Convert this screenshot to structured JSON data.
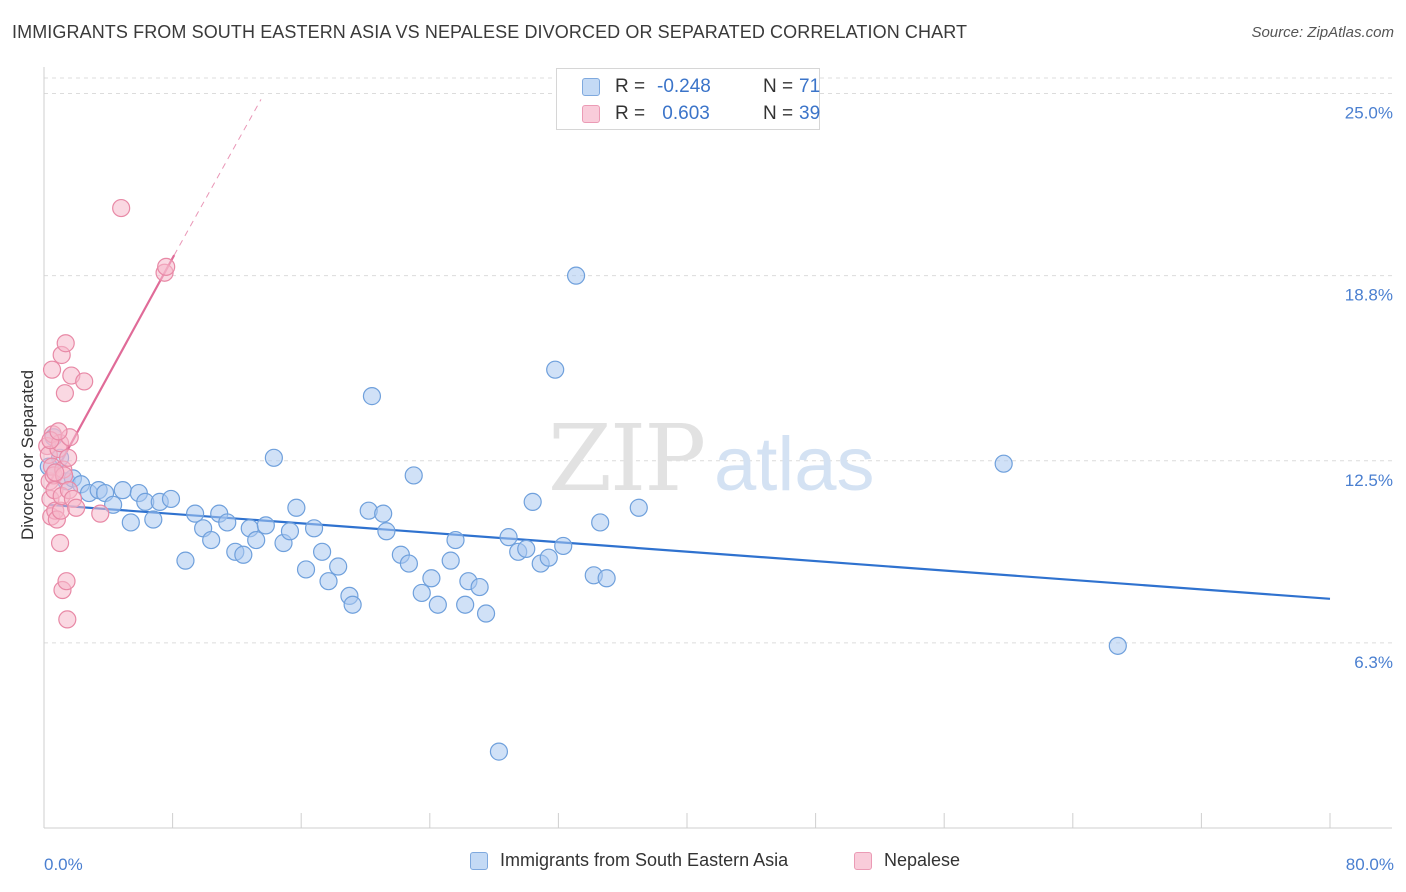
{
  "title": "IMMIGRANTS FROM SOUTH EASTERN ASIA VS NEPALESE DIVORCED OR SEPARATED CORRELATION CHART",
  "source": "Source: ZipAtlas.com",
  "watermark": {
    "zip": "ZIP",
    "atlas": "atlas"
  },
  "colors": {
    "blue_fill": "#a9c8f0",
    "blue_stroke": "#6fa0dc",
    "blue_line": "#2f72cf",
    "pink_fill": "#f5b8cb",
    "pink_stroke": "#e889a6",
    "pink_line": "#e06b98",
    "axis_label": "#4a7fd0",
    "grid": "#dcdcdc"
  },
  "stats": [
    {
      "r_label": "R =",
      "r_value": "-0.248",
      "n_label": "N =",
      "n_value": "71",
      "color": "blue"
    },
    {
      "r_label": "R =",
      "r_value": " 0.603",
      "n_label": "N =",
      "n_value": "39",
      "color": "pink"
    }
  ],
  "legend": [
    {
      "label": "Immigrants from South Eastern Asia",
      "color": "blue"
    },
    {
      "label": "Nepalese",
      "color": "pink"
    }
  ],
  "chart_data": {
    "type": "scatter",
    "ylabel": "Divorced or Separated",
    "xlim": [
      0,
      80
    ],
    "ylim": [
      0,
      25.8
    ],
    "x_tick_labels": [
      {
        "value": 0,
        "label": "0.0%"
      },
      {
        "value": 80,
        "label": "80.0%"
      }
    ],
    "y_ticks": [
      {
        "value": 6.3,
        "label": "6.3%"
      },
      {
        "value": 12.5,
        "label": "12.5%"
      },
      {
        "value": 18.8,
        "label": "18.8%"
      },
      {
        "value": 25.0,
        "label": "25.0%"
      }
    ],
    "x_minor_ticks": [
      8,
      16,
      24,
      32,
      40,
      48,
      56,
      64,
      72,
      80
    ],
    "series": [
      {
        "name": "Immigrants from South Eastern Asia",
        "color": "blue",
        "points": [
          [
            0.6,
            13.3
          ],
          [
            1.0,
            12.6
          ],
          [
            1.4,
            11.8
          ],
          [
            1.8,
            11.9
          ],
          [
            2.3,
            11.7
          ],
          [
            2.8,
            11.4
          ],
          [
            3.4,
            11.5
          ],
          [
            3.8,
            11.4
          ],
          [
            4.3,
            11.0
          ],
          [
            4.9,
            11.5
          ],
          [
            5.4,
            10.4
          ],
          [
            5.9,
            11.4
          ],
          [
            6.3,
            11.1
          ],
          [
            6.8,
            10.5
          ],
          [
            7.2,
            11.1
          ],
          [
            7.9,
            11.2
          ],
          [
            8.8,
            9.1
          ],
          [
            9.4,
            10.7
          ],
          [
            9.9,
            10.2
          ],
          [
            10.4,
            9.8
          ],
          [
            10.9,
            10.7
          ],
          [
            11.4,
            10.4
          ],
          [
            11.9,
            9.4
          ],
          [
            12.4,
            9.3
          ],
          [
            12.8,
            10.2
          ],
          [
            13.2,
            9.8
          ],
          [
            13.8,
            10.3
          ],
          [
            14.3,
            12.6
          ],
          [
            14.9,
            9.7
          ],
          [
            15.3,
            10.1
          ],
          [
            15.7,
            10.9
          ],
          [
            16.3,
            8.8
          ],
          [
            16.8,
            10.2
          ],
          [
            17.3,
            9.4
          ],
          [
            17.7,
            8.4
          ],
          [
            18.3,
            8.9
          ],
          [
            19.0,
            7.9
          ],
          [
            19.2,
            7.6
          ],
          [
            20.2,
            10.8
          ],
          [
            20.4,
            14.7
          ],
          [
            21.1,
            10.7
          ],
          [
            21.3,
            10.1
          ],
          [
            22.2,
            9.3
          ],
          [
            22.7,
            9.0
          ],
          [
            23.0,
            12.0
          ],
          [
            23.5,
            8.0
          ],
          [
            24.1,
            8.5
          ],
          [
            24.5,
            7.6
          ],
          [
            25.3,
            9.1
          ],
          [
            25.6,
            9.8
          ],
          [
            26.2,
            7.6
          ],
          [
            26.4,
            8.4
          ],
          [
            27.1,
            8.2
          ],
          [
            27.5,
            7.3
          ],
          [
            28.3,
            2.6
          ],
          [
            28.9,
            9.9
          ],
          [
            29.5,
            9.4
          ],
          [
            30.0,
            9.5
          ],
          [
            30.4,
            11.1
          ],
          [
            30.9,
            9.0
          ],
          [
            31.4,
            9.2
          ],
          [
            31.8,
            15.6
          ],
          [
            32.3,
            9.6
          ],
          [
            33.1,
            18.8
          ],
          [
            34.2,
            8.6
          ],
          [
            34.6,
            10.4
          ],
          [
            35.0,
            8.5
          ],
          [
            37.0,
            10.9
          ],
          [
            59.7,
            12.4
          ],
          [
            66.8,
            6.2
          ],
          [
            0.3,
            12.3
          ]
        ]
      },
      {
        "name": "Nepalese",
        "color": "pink",
        "points": [
          [
            0.2,
            13.0
          ],
          [
            0.3,
            12.7
          ],
          [
            0.35,
            11.8
          ],
          [
            0.4,
            11.2
          ],
          [
            0.45,
            10.6
          ],
          [
            0.5,
            12.3
          ],
          [
            0.55,
            13.4
          ],
          [
            0.6,
            12.0
          ],
          [
            0.65,
            11.5
          ],
          [
            0.7,
            10.8
          ],
          [
            0.5,
            15.6
          ],
          [
            0.8,
            10.5
          ],
          [
            0.9,
            12.9
          ],
          [
            1.0,
            13.1
          ],
          [
            1.0,
            9.7
          ],
          [
            1.05,
            10.8
          ],
          [
            1.1,
            11.3
          ],
          [
            1.1,
            16.1
          ],
          [
            1.15,
            8.1
          ],
          [
            1.2,
            12.2
          ],
          [
            1.25,
            12.0
          ],
          [
            1.3,
            14.8
          ],
          [
            1.35,
            16.5
          ],
          [
            1.4,
            8.4
          ],
          [
            1.45,
            7.1
          ],
          [
            1.5,
            12.6
          ],
          [
            1.55,
            11.5
          ],
          [
            1.6,
            13.3
          ],
          [
            1.7,
            15.4
          ],
          [
            1.8,
            11.2
          ],
          [
            2.0,
            10.9
          ],
          [
            2.5,
            15.2
          ],
          [
            3.5,
            10.7
          ],
          [
            4.8,
            21.1
          ],
          [
            7.5,
            18.9
          ],
          [
            7.6,
            19.1
          ],
          [
            0.4,
            13.2
          ],
          [
            0.7,
            12.1
          ],
          [
            0.9,
            13.5
          ]
        ]
      }
    ],
    "trendlines": [
      {
        "series": "Immigrants from South Eastern Asia",
        "x1": 0.3,
        "y1": 11.0,
        "x2": 80,
        "y2": 7.8,
        "style": "solid"
      },
      {
        "series": "Nepalese",
        "x1": 0.2,
        "y1": 11.6,
        "x2": 8.1,
        "y2": 19.5,
        "style": "solid"
      },
      {
        "series": "Nepalese",
        "x1": 8.1,
        "y1": 19.5,
        "x2": 13.5,
        "y2": 24.8,
        "style": "dashed"
      }
    ]
  }
}
